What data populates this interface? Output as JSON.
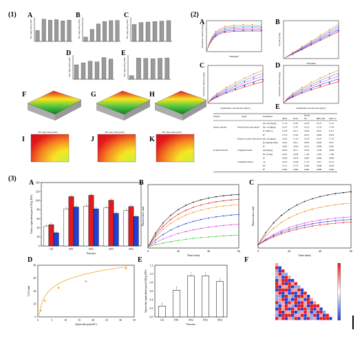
{
  "panels": {
    "p1": "(1)",
    "p2": "(2)",
    "p3": "(3)"
  },
  "sub": {
    "A1": "A",
    "B1": "B",
    "C1": "C",
    "D1": "D",
    "E1": "E",
    "F1": "F",
    "G1": "G",
    "H1": "H",
    "I1": "I",
    "J1": "J",
    "K1": "K",
    "A2": "A",
    "B2": "B",
    "C2": "C",
    "D2": "D",
    "E2": "E",
    "A3": "A",
    "B3": "B",
    "C3": "C",
    "D3": "D",
    "E3": "E",
    "F3": "F"
  },
  "colors": {
    "red": "#e41a1c",
    "blue": "#1f3fd6",
    "white": "#ffffff",
    "gray": "#9a9a9a",
    "orange": "#f5a623",
    "pink": "#e040e0",
    "green": "#33cc33",
    "black": "#111111"
  },
  "panel1": {
    "bar_ylabel": "TPC (mg GAE/g DW)",
    "top_bars": [
      [
        0.45,
        0.92,
        0.88,
        0.9,
        0.85,
        0.88
      ],
      [
        0.18,
        0.5,
        0.72,
        0.82,
        0.86,
        0.87
      ],
      [
        0.7,
        0.78,
        0.8,
        0.82,
        0.84,
        0.86
      ]
    ],
    "mid_bars": [
      [
        0.6,
        0.68,
        0.75,
        0.72,
        0.9,
        0.84
      ],
      [
        0.15,
        0.88,
        0.86,
        0.85,
        0.87,
        0.88
      ]
    ],
    "surf_titles": [
      "",
      "",
      ""
    ],
    "contour_titles": [
      "TPC (mg GAE/g DW)",
      "TPC (mg GAE/g DW)",
      "TPC (mg GAE/g DW)"
    ]
  },
  "panel2": {
    "A_xlabel": "Time(min)",
    "B_xlabel": "Time(min)",
    "C_xlabel": "Equilibrium concentration (mg/L)",
    "D_xlabel": "Equilibrium concentration (mg/L)",
    "A_ylabel": "Adsorption capacity (mg/g)",
    "B_ylabel": "t/qt (min·g/mg)",
    "C_ylabel": "Adsorption capacity (mg/g)",
    "D_ylabel": "Adsorption capacity (mg/g)",
    "table": {
      "headers": [
        "Models",
        "Types",
        "Parameters",
        "Resins"
      ],
      "resins": [
        "AB-8",
        "D101",
        "X5",
        "HPD-100",
        "ADS-17"
      ],
      "rows": [
        [
          "",
          "",
          "Qe, exp (mg/g)",
          "17.33",
          "16.87",
          "16.93",
          "16.75",
          "17.14"
        ],
        [
          "Kinetic models",
          "Pseudo-first-order model",
          "Qe, cal (mg/g)",
          "16.25",
          "15.67",
          "16.22",
          "15.24",
          "17.04"
        ],
        [
          "",
          "",
          "K1 (min-1)",
          "0.278",
          "0.071",
          "0.093",
          "0.055",
          "0.177"
        ],
        [
          "",
          "",
          "R²",
          "0.776",
          "0.793",
          "0.873",
          "0.899",
          "0.679"
        ],
        [
          "",
          "Pseudo-second-order model",
          "Qe, cal (mg/g)",
          "16.95",
          "17.19",
          "16.59",
          "16.97",
          "17.76"
        ],
        [
          "",
          "",
          "K2 (g/(mg·min))",
          "0.022",
          "0.011",
          "0.063",
          "0.006",
          "0.015"
        ],
        [
          "",
          "",
          "R²",
          "0.992",
          "0.993",
          "0.991",
          "0.998",
          "0.995"
        ],
        [
          "Isotherm models",
          "Langmuir model",
          "Qm (mg/g)",
          "40.36",
          "36.17",
          "33.00",
          "31.88",
          "38.68"
        ],
        [
          "",
          "",
          "KL (L/mg)",
          "0.019",
          "0.062",
          "1.162",
          "1.002",
          "1.109"
        ],
        [
          "",
          "",
          "R²",
          "0.959",
          "0.978",
          "0.895",
          "0.896",
          "0.899"
        ],
        [
          "",
          "Freundlich model",
          "1/n",
          "16.10",
          "19.68",
          "17.53",
          "16.15",
          "22.16"
        ],
        [
          "",
          "",
          "KF",
          "0.751",
          "0.773",
          "0.640",
          "0.688",
          "0.649"
        ],
        [
          "",
          "",
          "R²",
          "0.993",
          "0.984",
          "0.992",
          "0.988",
          "0.994"
        ]
      ]
    }
  },
  "panel3": {
    "A_ylabel": "Trolox equivalent (μmol TE/g DW)",
    "A_xlabel": "Extracts",
    "A_categories": [
      "CE",
      "PF1",
      "PF2",
      "PF3",
      "PF4"
    ],
    "A_series": [
      {
        "color": "#ffffff",
        "values": [
          44,
          82,
          88,
          84,
          78
        ]
      },
      {
        "color": "#e41a1c",
        "values": [
          47,
          109,
          112,
          101,
          87
        ]
      },
      {
        "color": "#1f3fd6",
        "values": [
          29,
          86,
          82,
          72,
          65
        ]
      }
    ],
    "A_ymax": 140,
    "A_yticks": [
      "0",
      "20",
      "40",
      "60",
      "80",
      "100",
      "120",
      "140"
    ],
    "B_xlabel": "Time (min)",
    "B_ylabel": "Fluorescence unit",
    "C_xlabel": "Time (min)",
    "C_ylabel": "Fluorescence unit",
    "time_ticks": [
      "0",
      "20",
      "40",
      "60"
    ],
    "D_xlabel": "Quercetin (μmol/L)",
    "D_ylabel": "CAA unit",
    "D_points": [
      [
        1,
        10
      ],
      [
        2.5,
        25
      ],
      [
        7.5,
        45
      ],
      [
        17.5,
        55
      ],
      [
        32,
        75
      ]
    ],
    "D_xticks": [
      "0",
      "5",
      "10",
      "15",
      "20",
      "25",
      "30",
      "35"
    ],
    "D_yticks": [
      "0",
      "20",
      "40",
      "60",
      "80"
    ],
    "E_ylabel": "Quercetin equivalent (μmol QE/g DW)",
    "E_xlabel": "Extracts",
    "E_categories": [
      "CE",
      "PF1",
      "PF2",
      "PF3",
      "PF4"
    ],
    "E_values": [
      0.25,
      0.62,
      0.95,
      0.95,
      0.82
    ],
    "E_letters": [
      "a",
      "b",
      "c",
      "c",
      "c"
    ],
    "E_yticks": [
      "0.0",
      "0.2",
      "0.4",
      "0.6",
      "0.8",
      "1.0",
      "1.2"
    ]
  }
}
